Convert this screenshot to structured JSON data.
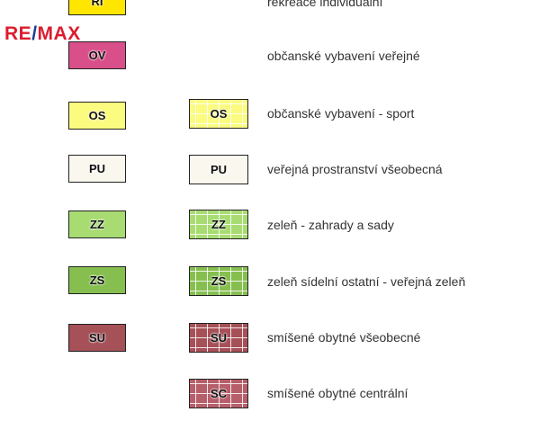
{
  "logo": {
    "a": "RE",
    "slash": "/",
    "b": "MAX"
  },
  "rows": [
    {
      "code": "RI",
      "label": "rekreace individuální",
      "color": "#ffe600"
    },
    {
      "code": "OV",
      "label": "občanské vybavení veřejné",
      "color": "#d94f8a"
    },
    {
      "code": "OS",
      "label": "občanské vybavení - sport",
      "color": "#fbfb80"
    },
    {
      "code": "PU",
      "label": "veřejná prostranství všeobecná",
      "color": "#faf7ee"
    },
    {
      "code": "ZZ",
      "label": "zeleň - zahrady a sady",
      "color": "#a8dc72"
    },
    {
      "code": "ZS",
      "label": "zeleň sídelní ostatní - veřejná zeleň",
      "color": "#86bf50"
    },
    {
      "code": "SU",
      "label": "smíšené obytné všeobecné",
      "color": "#a65058"
    },
    {
      "code": "SC",
      "label": "smíšené obytné centrální",
      "color": "#b65f6a"
    }
  ]
}
